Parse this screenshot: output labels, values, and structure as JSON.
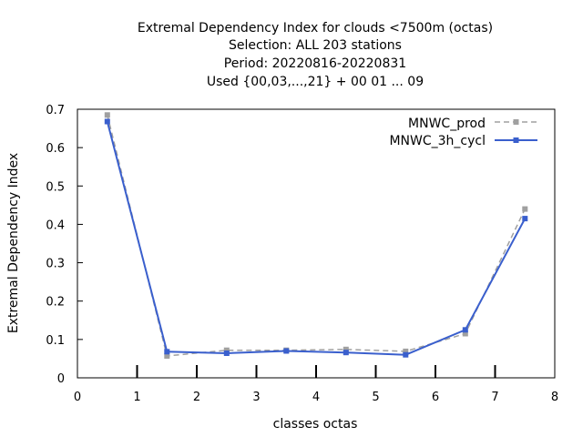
{
  "chart_data": {
    "type": "line",
    "title_lines": [
      "Extremal Dependency Index  for clouds <7500m (octas)",
      "Selection: ALL    203 stations",
      "Period: 20220816-20220831",
      "Used {00,03,...,21} + 00 01 ... 09"
    ],
    "xlabel": "classes octas",
    "ylabel": "Extremal Dependency Index",
    "xlim": [
      0,
      8
    ],
    "ylim": [
      0,
      0.7
    ],
    "x_ticks": [
      "0",
      "1",
      "2",
      "3",
      "4",
      "5",
      "6",
      "7",
      "8"
    ],
    "y_ticks": [
      "0",
      "0.1",
      "0.2",
      "0.3",
      "0.4",
      "0.5",
      "0.6",
      "0.7"
    ],
    "legend_position": "top-right",
    "grid": false,
    "series": [
      {
        "name": "MNWC_prod",
        "color": "#a0a0a0",
        "dashed": true,
        "x": [
          0.5,
          1.5,
          2.5,
          3.5,
          4.5,
          5.5,
          6.5,
          7.5
        ],
        "values": [
          0.685,
          0.057,
          0.072,
          0.072,
          0.074,
          0.069,
          0.115,
          0.44
        ]
      },
      {
        "name": "MNWC_3h_cycl",
        "color": "#3a5fcd",
        "dashed": false,
        "x": [
          0.5,
          1.5,
          2.5,
          3.5,
          4.5,
          5.5,
          6.5,
          7.5
        ],
        "values": [
          0.668,
          0.068,
          0.064,
          0.07,
          0.066,
          0.06,
          0.125,
          0.415
        ]
      }
    ]
  }
}
